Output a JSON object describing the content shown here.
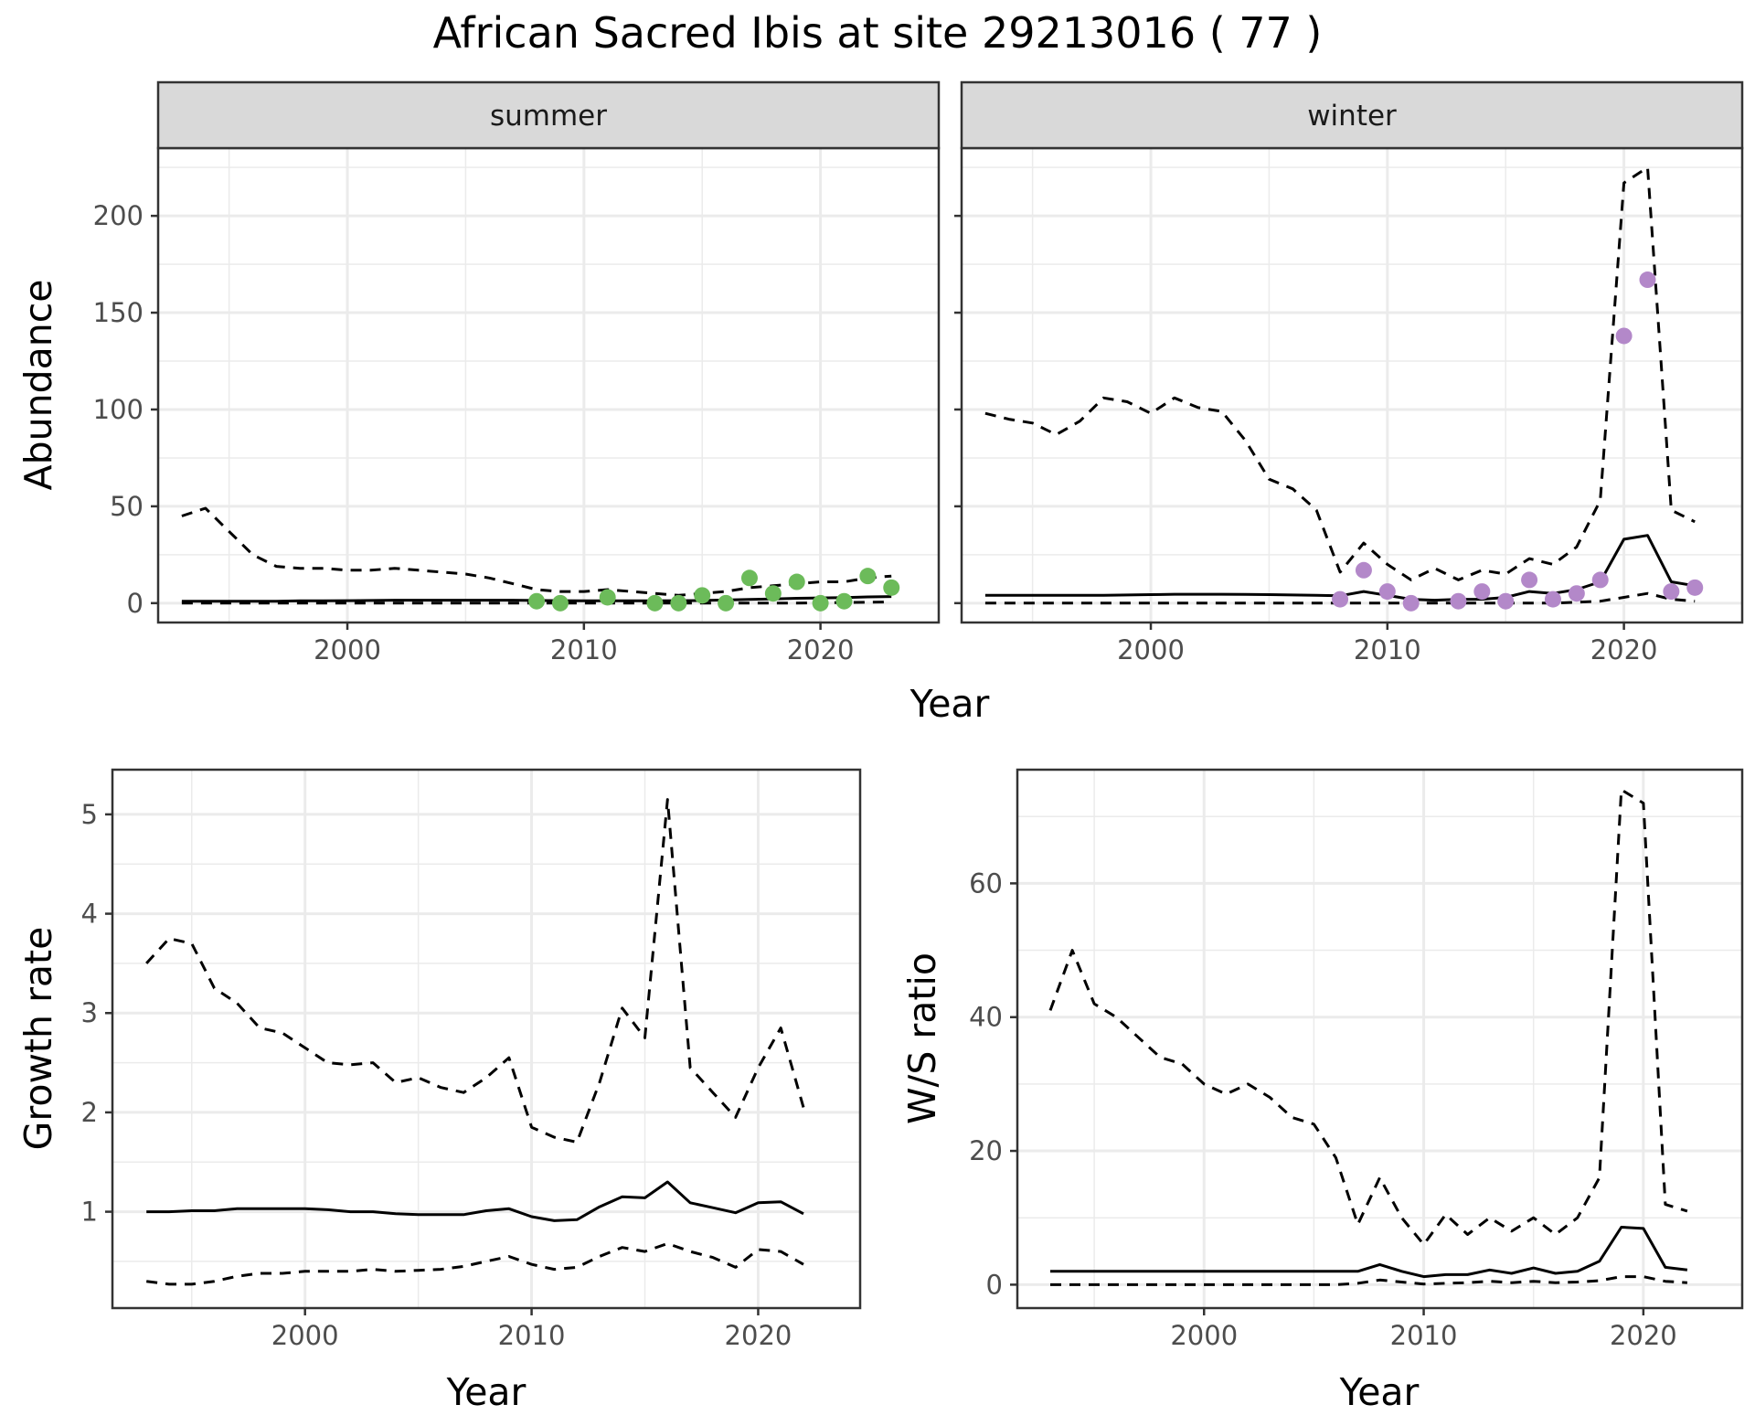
{
  "title": "African Sacred Ibis at site 29213016 ( 77 )",
  "colors": {
    "summer_points": "#6cbb5a",
    "winter_points": "#b388c9",
    "lines": "#000000",
    "grid": "#ebebeb",
    "strip_bg": "#d9d9d9"
  },
  "chart_data": [
    {
      "type": "line",
      "panel": "summer",
      "strip_label": "summer",
      "xlabel": "Year",
      "ylabel": "Abundance",
      "xlim": [
        1992,
        2025
      ],
      "ylim": [
        -10,
        235
      ],
      "x_ticks": [
        2000,
        2010,
        2020
      ],
      "y_ticks": [
        0,
        50,
        100,
        150,
        200
      ],
      "x": [
        1993,
        1994,
        1995,
        1996,
        1997,
        1998,
        1999,
        2000,
        2001,
        2002,
        2003,
        2004,
        2005,
        2006,
        2007,
        2008,
        2009,
        2010,
        2011,
        2012,
        2013,
        2014,
        2015,
        2016,
        2017,
        2018,
        2019,
        2020,
        2021,
        2022,
        2023
      ],
      "series": [
        {
          "role": "upper",
          "style": "dashed",
          "values": [
            45,
            49,
            37,
            25,
            19,
            18,
            18,
            17,
            17,
            18,
            17,
            16,
            15,
            13,
            10,
            7,
            6,
            6,
            7,
            6,
            5,
            4,
            5,
            6,
            8,
            9,
            10,
            11,
            11,
            13,
            14
          ]
        },
        {
          "role": "median",
          "style": "solid",
          "values": [
            1,
            1,
            1,
            1,
            1,
            1.2,
            1.2,
            1.3,
            1.4,
            1.5,
            1.5,
            1.5,
            1.5,
            1.5,
            1.5,
            1.4,
            1.3,
            1.2,
            1.2,
            1.2,
            1.2,
            1.3,
            1.4,
            1.6,
            1.9,
            2.2,
            2.5,
            2.7,
            2.9,
            3.2,
            3.4
          ]
        },
        {
          "role": "lower",
          "style": "dashed",
          "values": [
            0,
            0,
            0,
            0,
            0,
            0,
            0,
            0,
            0,
            0,
            0,
            0,
            0,
            0,
            0,
            0,
            0,
            0,
            0,
            0,
            0,
            0,
            0,
            0,
            0,
            0,
            0,
            0.2,
            0.3,
            0.5,
            0.6
          ]
        }
      ],
      "points": {
        "x": [
          2008,
          2009,
          2011,
          2013,
          2014,
          2015,
          2016,
          2017,
          2018,
          2019,
          2020,
          2021,
          2022,
          2023
        ],
        "y": [
          1,
          0,
          3,
          0,
          0,
          4,
          0,
          13,
          5,
          11,
          0,
          1,
          14,
          8
        ]
      }
    },
    {
      "type": "line",
      "panel": "winter",
      "strip_label": "winter",
      "xlabel": "Year",
      "ylabel": "Abundance",
      "xlim": [
        1992,
        2025
      ],
      "ylim": [
        -10,
        235
      ],
      "x_ticks": [
        2000,
        2010,
        2020
      ],
      "y_ticks": [
        0,
        50,
        100,
        150,
        200
      ],
      "x": [
        1993,
        1994,
        1995,
        1996,
        1997,
        1998,
        1999,
        2000,
        2001,
        2002,
        2003,
        2004,
        2005,
        2006,
        2007,
        2008,
        2009,
        2010,
        2011,
        2012,
        2013,
        2014,
        2015,
        2016,
        2017,
        2018,
        2019,
        2020,
        2021,
        2022,
        2023
      ],
      "series": [
        {
          "role": "upper",
          "style": "dashed",
          "values": [
            98,
            95,
            93,
            87,
            94,
            106,
            104,
            98,
            106,
            101,
            99,
            84,
            64,
            59,
            48,
            16,
            31,
            20,
            12,
            18,
            12,
            17,
            15,
            23,
            20,
            29,
            53,
            217,
            225,
            48,
            42
          ]
        },
        {
          "role": "median",
          "style": "solid",
          "values": [
            4,
            4,
            4,
            4,
            4,
            4,
            4.2,
            4.4,
            4.6,
            4.6,
            4.6,
            4.5,
            4.4,
            4.2,
            4,
            3.8,
            6,
            4,
            2,
            1.5,
            2,
            2,
            3,
            6,
            5,
            7,
            11,
            33,
            35,
            11,
            9
          ]
        },
        {
          "role": "lower",
          "style": "dashed",
          "values": [
            0,
            0,
            0,
            0,
            0,
            0,
            0,
            0,
            0,
            0,
            0,
            0,
            0,
            0,
            0,
            0,
            0,
            0,
            0,
            0,
            0,
            0,
            0,
            0,
            0,
            0.5,
            1,
            3,
            5,
            2,
            1
          ]
        }
      ],
      "points": {
        "x": [
          2008,
          2009,
          2010,
          2011,
          2013,
          2014,
          2015,
          2016,
          2017,
          2018,
          2019,
          2020,
          2021,
          2022,
          2023
        ],
        "y": [
          2,
          17,
          6,
          0,
          1,
          6,
          1,
          12,
          2,
          5,
          12,
          138,
          167,
          6,
          8
        ]
      }
    },
    {
      "type": "line",
      "panel": "growth",
      "xlabel": "Year",
      "ylabel": "Growth rate",
      "xlim": [
        1991.5,
        2024.5
      ],
      "ylim": [
        0.03,
        5.45
      ],
      "x_ticks": [
        2000,
        2010,
        2020
      ],
      "y_ticks": [
        1,
        2,
        3,
        4,
        5
      ],
      "x": [
        1993,
        1994,
        1995,
        1996,
        1997,
        1998,
        1999,
        2000,
        2001,
        2002,
        2003,
        2004,
        2005,
        2006,
        2007,
        2008,
        2009,
        2010,
        2011,
        2012,
        2013,
        2014,
        2015,
        2016,
        2017,
        2018,
        2019,
        2020,
        2021,
        2022
      ],
      "series": [
        {
          "role": "upper",
          "style": "dashed",
          "values": [
            3.5,
            3.75,
            3.7,
            3.25,
            3.1,
            2.85,
            2.8,
            2.65,
            2.5,
            2.48,
            2.5,
            2.3,
            2.35,
            2.25,
            2.2,
            2.35,
            2.55,
            1.85,
            1.75,
            1.7,
            2.3,
            3.05,
            2.75,
            5.15,
            2.45,
            2.2,
            1.95,
            2.45,
            2.85,
            2.05
          ]
        },
        {
          "role": "median",
          "style": "solid",
          "values": [
            1,
            1,
            1.01,
            1.01,
            1.03,
            1.03,
            1.03,
            1.03,
            1.02,
            1,
            1,
            0.98,
            0.97,
            0.97,
            0.97,
            1.01,
            1.03,
            0.95,
            0.91,
            0.92,
            1.05,
            1.15,
            1.14,
            1.3,
            1.09,
            1.04,
            0.99,
            1.09,
            1.1,
            0.98
          ]
        },
        {
          "role": "lower",
          "style": "dashed",
          "values": [
            0.3,
            0.27,
            0.27,
            0.3,
            0.35,
            0.38,
            0.38,
            0.4,
            0.4,
            0.4,
            0.42,
            0.4,
            0.41,
            0.42,
            0.45,
            0.5,
            0.55,
            0.47,
            0.42,
            0.44,
            0.55,
            0.64,
            0.6,
            0.68,
            0.6,
            0.54,
            0.44,
            0.62,
            0.6,
            0.47
          ]
        }
      ]
    },
    {
      "type": "line",
      "panel": "ratio",
      "xlabel": "Year",
      "ylabel": "W/S ratio",
      "xlim": [
        1991.5,
        2024.5
      ],
      "ylim": [
        -3.5,
        77
      ],
      "x_ticks": [
        2000,
        2010,
        2020
      ],
      "y_ticks": [
        0,
        20,
        40,
        60
      ],
      "x": [
        1993,
        1994,
        1995,
        1996,
        1997,
        1998,
        1999,
        2000,
        2001,
        2002,
        2003,
        2004,
        2005,
        2006,
        2007,
        2008,
        2009,
        2010,
        2011,
        2012,
        2013,
        2014,
        2015,
        2016,
        2017,
        2018,
        2019,
        2020,
        2021,
        2022
      ],
      "series": [
        {
          "role": "upper",
          "style": "dashed",
          "values": [
            41,
            50,
            42,
            40,
            37,
            34,
            33,
            30,
            28.5,
            30,
            28,
            25,
            24,
            19,
            9,
            16,
            10,
            6,
            10.5,
            7.5,
            10,
            8,
            10,
            7.5,
            10,
            16,
            74,
            72,
            12,
            11
          ]
        },
        {
          "role": "median",
          "style": "solid",
          "values": [
            2,
            2,
            2,
            2,
            2,
            2,
            2,
            2,
            2,
            2,
            2,
            2,
            2,
            2,
            2,
            3,
            2,
            1.2,
            1.5,
            1.5,
            2.2,
            1.7,
            2.5,
            1.7,
            2,
            3.5,
            8.6,
            8.4,
            2.6,
            2.2
          ]
        },
        {
          "role": "lower",
          "style": "dashed",
          "values": [
            0,
            0,
            0,
            0,
            0,
            0,
            0,
            0,
            0,
            0,
            0,
            0,
            0,
            0,
            0.2,
            0.7,
            0.4,
            0.1,
            0.2,
            0.3,
            0.5,
            0.3,
            0.5,
            0.3,
            0.4,
            0.6,
            1.2,
            1.2,
            0.5,
            0.3
          ]
        }
      ]
    }
  ]
}
